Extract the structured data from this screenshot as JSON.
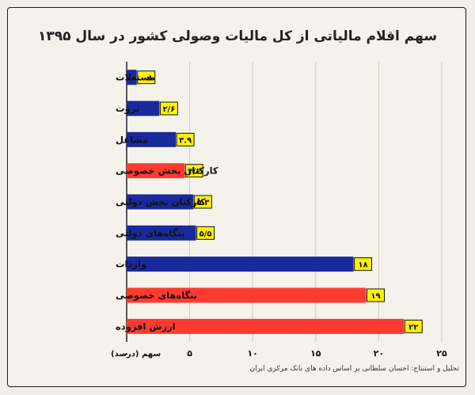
{
  "chart_data": {
    "type": "bar",
    "orientation": "horizontal",
    "title": "سهم اقلام مالیاتی از کل مالیات وصولی کشور در سال ۱۳۹۵",
    "xlabel": "سهم (درصد)",
    "categories": [
      "مستغلات",
      "ثروت",
      "مشاغل",
      "کارکنان بخش خصوصی",
      "کارکنان بخش دولتی",
      "بنگاه‌های دولتی",
      "واردات",
      "بنگاه‌های خصوصی",
      "ارزش افزوده"
    ],
    "values": [
      0.8,
      2.6,
      3.9,
      4.6,
      5.3,
      5.5,
      18,
      19,
      22
    ],
    "value_labels": [
      "۰.۸",
      "۲/۶",
      "۳.۹",
      "۴/۶",
      "۵.۳",
      "۵/۵",
      "۱۸",
      "۱۹",
      "۲۲"
    ],
    "bar_colors": [
      "#1a2a9c",
      "#1a2a9c",
      "#1a2a9c",
      "#ff3b30",
      "#1a2a9c",
      "#1a2a9c",
      "#1a2a9c",
      "#ff3b30",
      "#ff3b30"
    ],
    "xlim": [
      0,
      25
    ],
    "x_ticks": [
      0,
      5,
      10,
      15,
      20,
      25
    ],
    "x_tick_labels": [
      "۰",
      "۵",
      "۱۰",
      "۱۵",
      "۲۰",
      "۲۵"
    ],
    "grid": "vertical",
    "label_box_color": "#fff200"
  },
  "credit": "تحلیل و استنتاج: احسان سلطانی بر اساس داده های بانک مرکزی ایران"
}
